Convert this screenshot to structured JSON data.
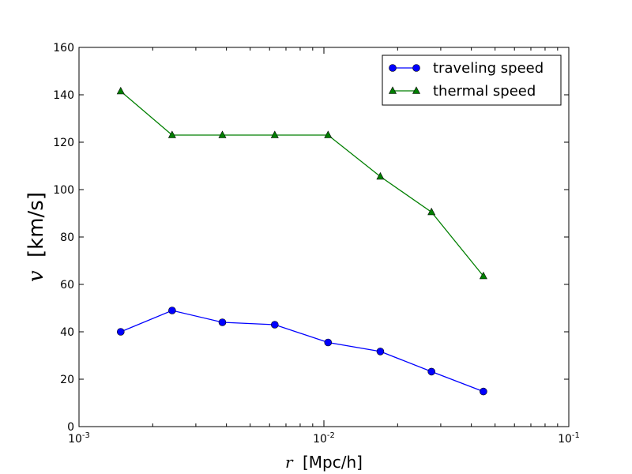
{
  "chart_data": {
    "type": "line",
    "xscale": "log",
    "xlim": [
      0.001,
      0.1
    ],
    "ylim": [
      0,
      160
    ],
    "x_ticks": [
      {
        "value": 0.001,
        "base": "10",
        "exp": "-3"
      },
      {
        "value": 0.01,
        "base": "10",
        "exp": "-2"
      },
      {
        "value": 0.1,
        "base": "10",
        "exp": "-1"
      }
    ],
    "y_ticks": [
      0,
      20,
      40,
      60,
      80,
      100,
      120,
      140,
      160
    ],
    "y_tick_labels": [
      "0",
      "20",
      "40",
      "60",
      "80",
      "100",
      "120",
      "140",
      "160"
    ],
    "xlabel": {
      "var": "r",
      "unit": "[Mpc/h]"
    },
    "ylabel": {
      "var": "v",
      "unit": "[km/s]"
    },
    "x": [
      0.00148,
      0.0024,
      0.00385,
      0.0063,
      0.0104,
      0.017,
      0.0275,
      0.0448
    ],
    "series": [
      {
        "name": "traveling speed",
        "color": "#0000ff",
        "marker": "circle",
        "values": [
          40.0,
          49.0,
          44.0,
          43.0,
          35.5,
          31.7,
          23.2,
          14.8
        ]
      },
      {
        "name": "thermal speed",
        "color": "#007f00",
        "marker": "triangle",
        "values": [
          141.5,
          123.0,
          123.0,
          123.0,
          123.0,
          105.5,
          90.5,
          63.5
        ]
      }
    ],
    "legend_position": "top-right",
    "grid": false
  }
}
